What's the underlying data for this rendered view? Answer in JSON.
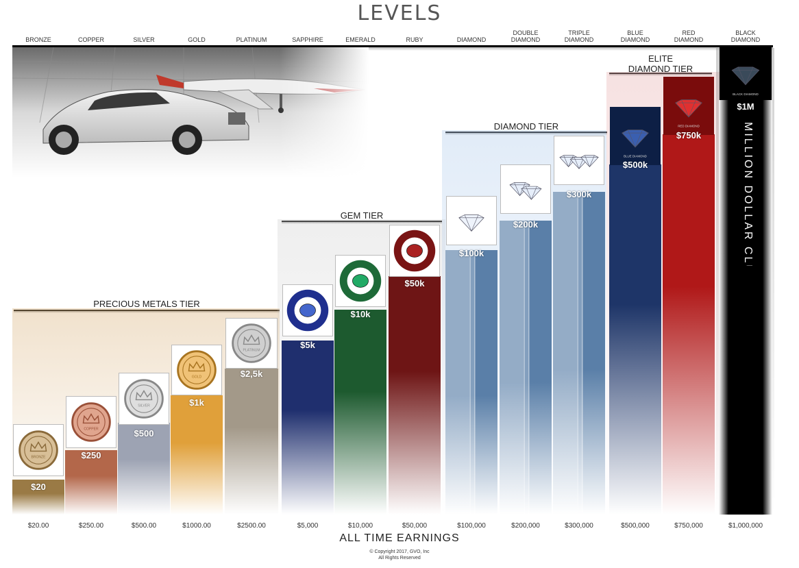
{
  "title": "LEVELS",
  "levels": [
    "BRONZE",
    "COPPER",
    "SILVER",
    "GOLD",
    "PLATINUM",
    "SAPPHIRE",
    "EMERALD",
    "RUBY",
    "DIAMOND",
    "DOUBLE\nDIAMOND",
    "TRIPLE\nDIAMOND",
    "BLUE\nDIAMOND",
    "RED\nDIAMOND",
    "BLACK\nDIAMOND"
  ],
  "tiers": {
    "precious": "PRECIOUS METALS TIER",
    "gem": "GEM TIER",
    "diamond": "DIAMOND TIER",
    "elite": "ELITE\nDIAMOND TIER",
    "million": "MILLION DOLLAR CLUB"
  },
  "badge_texts": [
    "BRONZE",
    "COPPER",
    "SILVER",
    "GOLD",
    "PLATINUM",
    "BLUE DIAMOND",
    "RED DIAMOND",
    "BLACK DIAMOND"
  ],
  "bar_labels": [
    "$20",
    "$250",
    "$500",
    "$1k",
    "$2,5k",
    "$5k",
    "$10k",
    "$50k",
    "$100k",
    "$200k",
    "$300k",
    "$500k",
    "$750k",
    "$1M"
  ],
  "x_ticks": [
    "$20.00",
    "$250.00",
    "$500.00",
    "$1000.00",
    "$2500.00",
    "$5,000",
    "$10,000",
    "$50,000",
    "$100,000",
    "$200,000",
    "$300,000",
    "$500,000",
    "$750,000",
    "$1,000,000"
  ],
  "x_axis_label": "ALL TIME EARNINGS",
  "copyright": "© Copyright 2017, GVO, Inc\nAll Rights Reserved",
  "colors": [
    "#9a7a45",
    "#b3674a",
    "#9da3b3",
    "#e0a03a",
    "#a39989",
    "#1f2f6e",
    "#1d5a2f",
    "#6e1515",
    "#5a7fa8",
    "#5a7fa8",
    "#5a7fa8",
    "#1e3568",
    "#b01818",
    "#161616"
  ],
  "chart_data": {
    "type": "bar",
    "categories": [
      "BRONZE",
      "COPPER",
      "SILVER",
      "GOLD",
      "PLATINUM",
      "SAPPHIRE",
      "EMERALD",
      "RUBY",
      "DIAMOND",
      "DOUBLE DIAMOND",
      "TRIPLE DIAMOND",
      "BLUE DIAMOND",
      "RED DIAMOND",
      "BLACK DIAMOND"
    ],
    "values": [
      20,
      250,
      500,
      1000,
      2500,
      5000,
      10000,
      50000,
      100000,
      200000,
      300000,
      500000,
      750000,
      1000000
    ],
    "xlabel": "ALL TIME EARNINGS",
    "title": "LEVELS",
    "tiers": [
      {
        "name": "PRECIOUS METALS TIER",
        "levels": [
          "BRONZE",
          "COPPER",
          "SILVER",
          "GOLD",
          "PLATINUM"
        ]
      },
      {
        "name": "GEM TIER",
        "levels": [
          "SAPPHIRE",
          "EMERALD",
          "RUBY"
        ]
      },
      {
        "name": "DIAMOND TIER",
        "levels": [
          "DIAMOND",
          "DOUBLE DIAMOND",
          "TRIPLE DIAMOND"
        ]
      },
      {
        "name": "ELITE DIAMOND TIER",
        "levels": [
          "BLUE DIAMOND",
          "RED DIAMOND"
        ]
      },
      {
        "name": "MILLION DOLLAR CLUB",
        "levels": [
          "BLACK DIAMOND"
        ]
      }
    ]
  }
}
